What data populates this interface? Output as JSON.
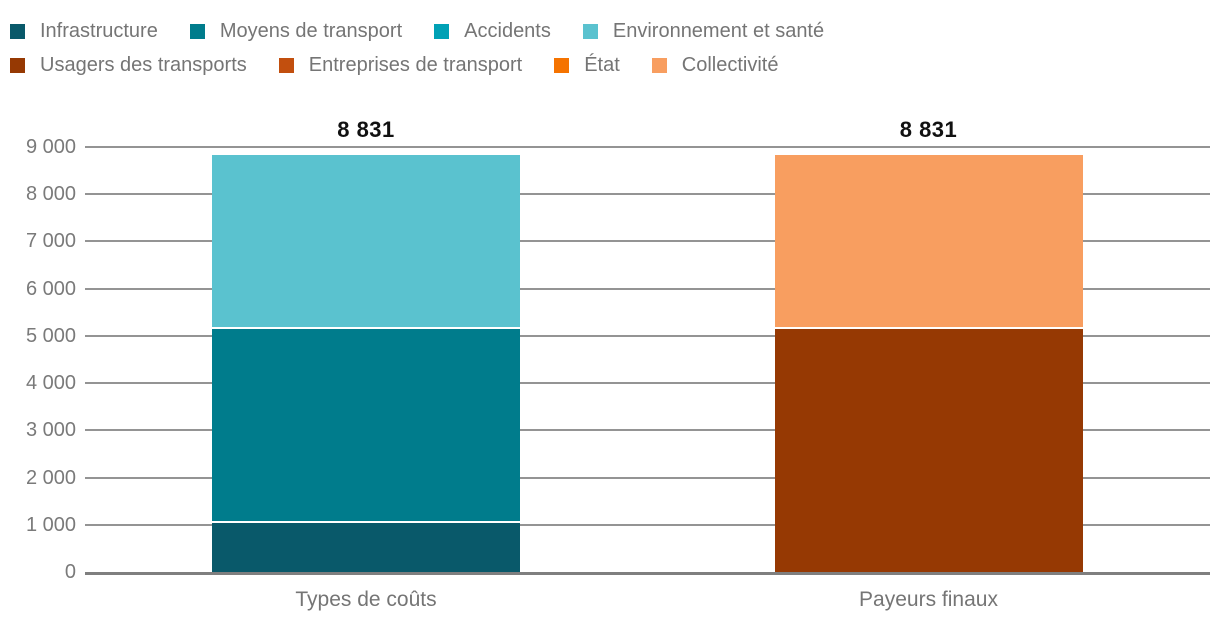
{
  "chart_data": {
    "type": "bar",
    "stacked": true,
    "title": "",
    "xlabel": "",
    "ylabel": "",
    "categories": [
      "Types de coûts",
      "Payeurs finaux"
    ],
    "series": [
      {
        "name": "Infrastructure",
        "color": "#09596a",
        "values": [
          1030,
          0
        ]
      },
      {
        "name": "Moyens de transport",
        "color": "#007c8c",
        "values": [
          4120,
          0
        ]
      },
      {
        "name": "Accidents",
        "color": "#00a1b5",
        "values": [
          0,
          0
        ]
      },
      {
        "name": "Environnement et santé",
        "color": "#5ac2cf",
        "values": [
          3681,
          0
        ]
      },
      {
        "name": "Usagers des transports",
        "color": "#963903",
        "values": [
          0,
          5150
        ]
      },
      {
        "name": "Entreprises de transport",
        "color": "#c24f0e",
        "values": [
          0,
          0
        ]
      },
      {
        "name": "État",
        "color": "#f57300",
        "values": [
          0,
          0
        ]
      },
      {
        "name": "Collectivité",
        "color": "#f89e60",
        "values": [
          0,
          3681
        ]
      }
    ],
    "totals": [
      "8 831",
      "8 831"
    ],
    "bar_total_value": 8831,
    "y_axis": {
      "min": 0,
      "max": 9000,
      "tick_step": 1000,
      "tick_labels": [
        "0",
        "1 000",
        "2 000",
        "3 000",
        "4 000",
        "5 000",
        "6 000",
        "7 000",
        "8 000",
        "9 000"
      ]
    },
    "grid": true,
    "legend_position": "top",
    "legend_rows": [
      [
        0,
        1,
        2,
        3
      ],
      [
        4,
        5,
        6,
        7
      ]
    ]
  },
  "colors": {
    "gridline": "#949494",
    "baseline": "#7f7f7f",
    "axis_text": "#7a7a7a",
    "legend_text": "#757575",
    "total_text": "#111111",
    "background": "#ffffff",
    "segment_separator": "#ffffff"
  }
}
